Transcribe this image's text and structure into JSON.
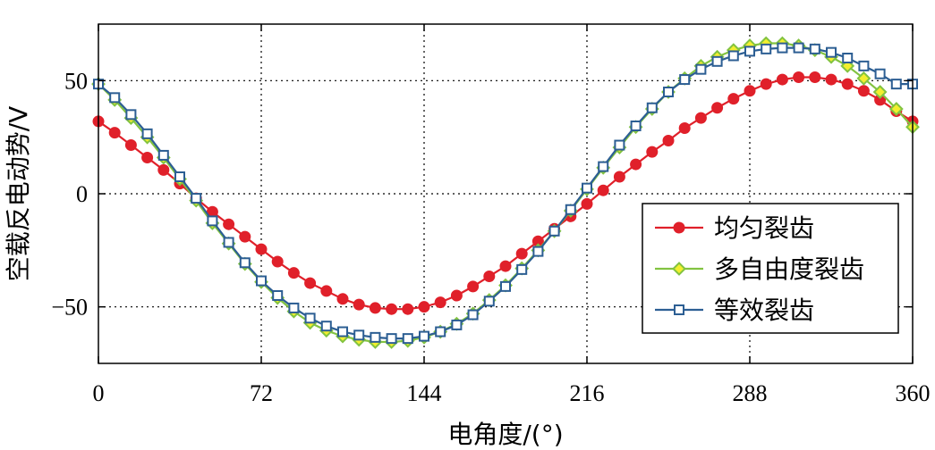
{
  "chart_data": {
    "type": "line",
    "title": "",
    "xlabel": "电角度/(°)",
    "ylabel": "空载反电动势/V",
    "xlim": [
      0,
      360
    ],
    "ylim": [
      -75,
      75
    ],
    "x_ticks": [
      0,
      72,
      144,
      216,
      288,
      360
    ],
    "x_tick_labels": [
      "0",
      "72",
      "144",
      "216",
      "288",
      "360"
    ],
    "y_ticks": [
      50,
      0,
      -50
    ],
    "y_tick_labels": [
      "50",
      "0",
      "−50"
    ],
    "grid": "dotted",
    "legend_position": "lower-right",
    "x": [
      0,
      7.2,
      14.4,
      21.6,
      28.8,
      36,
      43.2,
      50.4,
      57.6,
      64.8,
      72,
      79.2,
      86.4,
      93.6,
      100.8,
      108,
      115.2,
      122.4,
      129.6,
      136.8,
      144,
      151.2,
      158.4,
      165.6,
      172.8,
      180,
      187.2,
      194.4,
      201.6,
      208.8,
      216,
      223.2,
      230.4,
      237.6,
      244.8,
      252,
      259.2,
      266.4,
      273.6,
      280.8,
      288,
      295.2,
      302.4,
      309.6,
      316.8,
      324,
      331.2,
      338.4,
      345.6,
      352.8,
      360
    ],
    "series": [
      {
        "name": "均匀裂齿",
        "color": "#e0202a",
        "marker": "circle",
        "values": [
          32.0,
          27.0,
          21.5,
          16.0,
          10.5,
          4.5,
          -2.0,
          -8.0,
          -13.5,
          -19.0,
          -24.5,
          -30.0,
          -35.0,
          -39.5,
          -43.0,
          -46.5,
          -49.0,
          -50.5,
          -51.0,
          -51.0,
          -50.0,
          -48.0,
          -45.0,
          -41.0,
          -36.5,
          -32.0,
          -26.5,
          -21.0,
          -15.5,
          -10.0,
          -4.5,
          1.5,
          7.5,
          13.0,
          18.5,
          23.5,
          29.0,
          33.5,
          38.0,
          42.0,
          45.5,
          48.5,
          50.5,
          51.5,
          51.5,
          50.5,
          48.5,
          45.5,
          41.5,
          36.5,
          32.0
        ]
      },
      {
        "name": "多自由度裂齿",
        "color": "#82c341",
        "marker": "diamond",
        "values": [
          48.5,
          41.5,
          33.5,
          25.0,
          16.0,
          6.5,
          -3.0,
          -13.0,
          -22.0,
          -31.0,
          -39.0,
          -46.0,
          -52.0,
          -57.0,
          -60.5,
          -63.0,
          -64.5,
          -65.5,
          -65.5,
          -65.0,
          -63.5,
          -61.0,
          -57.5,
          -53.0,
          -47.0,
          -40.5,
          -33.0,
          -25.0,
          -16.5,
          -7.5,
          2.0,
          11.5,
          20.5,
          29.5,
          37.5,
          45.0,
          51.0,
          56.5,
          60.5,
          63.5,
          65.5,
          66.5,
          66.5,
          65.5,
          63.5,
          60.5,
          56.5,
          51.0,
          45.0,
          37.5,
          29.5
        ]
      },
      {
        "name": "等效裂齿",
        "color": "#2c5e93",
        "marker": "square",
        "values": [
          48.5,
          42.5,
          35.0,
          26.5,
          17.0,
          7.5,
          -2.0,
          -12.0,
          -21.5,
          -30.5,
          -38.5,
          -45.0,
          -50.5,
          -55.0,
          -58.5,
          -61.0,
          -62.5,
          -63.5,
          -64.0,
          -64.0,
          -63.0,
          -61.0,
          -58.0,
          -53.5,
          -47.5,
          -41.0,
          -33.5,
          -25.5,
          -16.5,
          -7.0,
          2.5,
          12.0,
          21.5,
          30.0,
          38.0,
          45.0,
          50.5,
          55.0,
          58.5,
          61.0,
          63.0,
          64.0,
          64.5,
          64.5,
          64.0,
          62.5,
          60.0,
          56.5,
          53.0,
          48.5,
          48.5
        ]
      }
    ]
  }
}
